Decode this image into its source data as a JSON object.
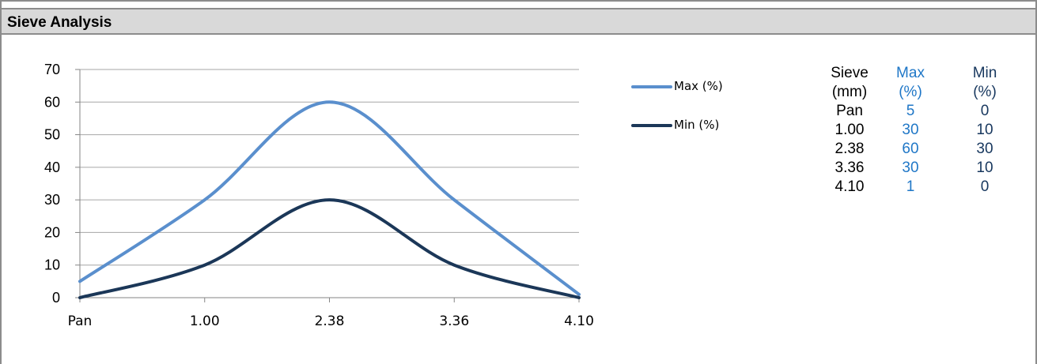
{
  "panel": {
    "title": "Sieve Analysis"
  },
  "colors": {
    "max_series": "#5a8fcd",
    "min_series": "#1b3758",
    "max_text": "#1f77c7",
    "min_text": "#17375e",
    "header_bg": "#d9d9d9",
    "gridline": "#a6a6a6"
  },
  "chart_data": {
    "type": "line",
    "categories": [
      "Pan",
      "1.00",
      "2.38",
      "3.36",
      "4.10"
    ],
    "series": [
      {
        "name": "Max (%)",
        "values": [
          5,
          30,
          60,
          30,
          1
        ]
      },
      {
        "name": "Min (%)",
        "values": [
          0,
          10,
          30,
          10,
          0
        ]
      }
    ],
    "ylim": [
      0,
      70
    ],
    "yticks": [
      0,
      10,
      20,
      30,
      40,
      50,
      60,
      70
    ],
    "grid": true,
    "smooth": true,
    "legend_position": "right"
  },
  "table": {
    "headers": [
      {
        "line1": "Sieve",
        "line2": "(mm)"
      },
      {
        "line1": "Max",
        "line2": "(%)"
      },
      {
        "line1": "Min",
        "line2": "(%)"
      }
    ],
    "rows": [
      {
        "sieve": "Pan",
        "max": "5",
        "min": "0"
      },
      {
        "sieve": "1.00",
        "max": "30",
        "min": "10"
      },
      {
        "sieve": "2.38",
        "max": "60",
        "min": "30"
      },
      {
        "sieve": "3.36",
        "max": "30",
        "min": "10"
      },
      {
        "sieve": "4.10",
        "max": "1",
        "min": "0"
      }
    ]
  }
}
